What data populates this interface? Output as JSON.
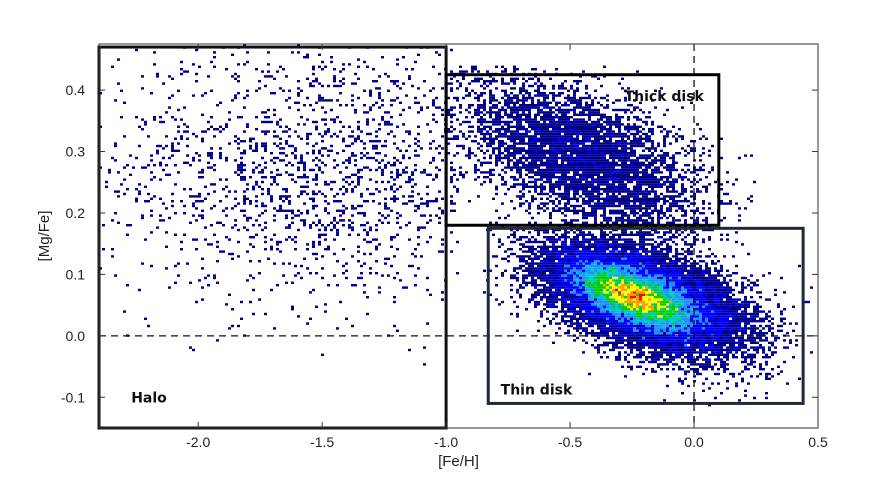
{
  "chart_data": {
    "type": "heatmap",
    "title": "",
    "xlabel": "[Fe/H]",
    "ylabel": "[Mg/Fe]",
    "xlim": [
      -2.4,
      0.5
    ],
    "ylim": [
      -0.15,
      0.475
    ],
    "x_ticks": [
      {
        "value": -2.0,
        "label": "-2.0"
      },
      {
        "value": -1.5,
        "label": "-1.5"
      },
      {
        "value": -1.0,
        "label": "-1.0"
      },
      {
        "value": -0.5,
        "label": "-0.5"
      },
      {
        "value": 0.0,
        "label": "0.0"
      },
      {
        "value": 0.5,
        "label": "0.5"
      }
    ],
    "y_ticks": [
      {
        "value": -0.1,
        "label": "-0.1"
      },
      {
        "value": 0.0,
        "label": "0.0"
      },
      {
        "value": 0.1,
        "label": "0.1"
      },
      {
        "value": 0.2,
        "label": "0.2"
      },
      {
        "value": 0.3,
        "label": "0.3"
      },
      {
        "value": 0.4,
        "label": "0.4"
      }
    ],
    "reference_lines": [
      {
        "orientation": "vertical",
        "value": 0.0,
        "style": "dashed"
      },
      {
        "orientation": "horizontal",
        "value": 0.0,
        "style": "dashed"
      }
    ],
    "regions": [
      {
        "name": "halo",
        "label": "Halo",
        "x": [
          -2.4,
          -1.0
        ],
        "y": [
          -0.15,
          0.47
        ],
        "label_at": [
          -2.27,
          -0.1
        ],
        "color": "#111111"
      },
      {
        "name": "thick-disk",
        "label": "Thick disk",
        "x": [
          -1.0,
          0.1
        ],
        "y": [
          0.18,
          0.425
        ],
        "label_at": [
          -0.28,
          0.39
        ],
        "color": "#000000"
      },
      {
        "name": "thin-disk",
        "label": "Thin disk",
        "x": [
          -0.83,
          0.44
        ],
        "y": [
          -0.11,
          0.175
        ],
        "label_at": [
          -0.78,
          -0.087
        ],
        "color": "#1c2a3a"
      }
    ],
    "density_populations": [
      {
        "name": "halo",
        "center": [
          -1.5,
          0.27
        ],
        "spread": [
          0.45,
          0.11
        ],
        "correlation": 0.0,
        "count": 1900,
        "weight": 0.5,
        "xrange": [
          -2.4,
          -0.95
        ],
        "yrange": [
          -0.15,
          0.475
        ]
      },
      {
        "name": "thick-disk",
        "center": [
          -0.45,
          0.29
        ],
        "spread": [
          0.24,
          0.065
        ],
        "correlation": -0.55,
        "count": 5200,
        "weight": 0.8,
        "xrange": [
          -1.0,
          0.25
        ],
        "yrange": [
          0.14,
          0.44
        ]
      },
      {
        "name": "thin-disk",
        "center": [
          -0.2,
          0.06
        ],
        "spread": [
          0.2,
          0.045
        ],
        "correlation": -0.5,
        "count": 14000,
        "weight": 1.0,
        "xrange": [
          -0.85,
          0.48
        ],
        "yrange": [
          -0.12,
          0.19
        ]
      },
      {
        "name": "thin-disk-core",
        "center": [
          -0.25,
          0.065
        ],
        "spread": [
          0.12,
          0.026
        ],
        "correlation": -0.65,
        "count": 7000,
        "weight": 1.6,
        "xrange": [
          -0.7,
          0.25
        ],
        "yrange": [
          -0.06,
          0.16
        ]
      }
    ],
    "colormap": [
      "#00008b",
      "#0000ff",
      "#1e90ff",
      "#00c8c8",
      "#00d200",
      "#ffff00",
      "#ff9a00",
      "#ff0000"
    ],
    "grid": false,
    "legend": "none"
  }
}
